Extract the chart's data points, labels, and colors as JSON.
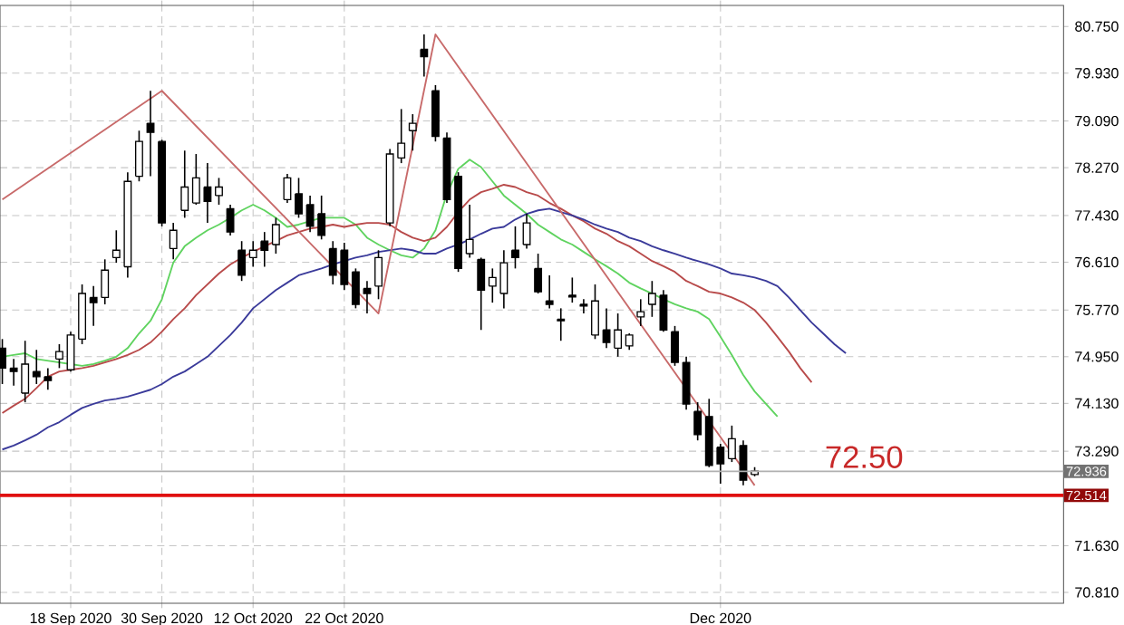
{
  "chart_data": {
    "type": "candlestick",
    "categories": [
      null,
      null,
      null,
      null,
      null,
      null,
      "18 Sep 2020",
      null,
      null,
      null,
      null,
      null,
      null,
      null,
      "30 Sep 2020",
      null,
      null,
      null,
      null,
      null,
      null,
      null,
      "12 Oct 2020",
      null,
      null,
      null,
      null,
      null,
      null,
      null,
      "22 Oct 2020",
      null,
      null,
      null,
      null,
      null,
      null,
      null,
      null,
      null,
      null,
      null,
      null,
      null,
      null,
      null,
      null,
      null,
      null,
      null,
      null,
      null,
      null,
      null,
      null,
      null,
      null,
      null,
      null,
      null,
      null,
      null,
      null,
      "Dec 2020",
      null,
      null,
      null,
      null,
      null,
      null,
      null,
      null,
      null,
      null,
      null,
      null,
      null,
      null,
      null,
      null,
      null,
      null,
      null,
      null,
      null,
      null,
      null,
      null,
      null,
      null,
      null,
      null,
      null,
      null
    ],
    "ohlc": [
      [
        75.1,
        75.26,
        74.47,
        74.75
      ],
      [
        74.75,
        74.91,
        74.44,
        74.69
      ],
      [
        74.31,
        75.23,
        74.15,
        74.82
      ],
      [
        74.69,
        75.07,
        74.47,
        74.6
      ],
      [
        74.6,
        74.75,
        74.37,
        74.53
      ],
      [
        74.91,
        75.17,
        74.75,
        75.04
      ],
      [
        74.72,
        75.39,
        74.69,
        75.33
      ],
      [
        75.26,
        76.22,
        75.17,
        76.06
      ],
      [
        75.99,
        76.19,
        75.49,
        75.9
      ],
      [
        75.99,
        76.66,
        75.87,
        76.47
      ],
      [
        76.69,
        77.17,
        76.6,
        76.82
      ],
      [
        76.53,
        78.19,
        76.34,
        78.03
      ],
      [
        78.12,
        78.92,
        78.03,
        78.73
      ],
      [
        79.05,
        79.62,
        78.12,
        78.89
      ],
      [
        78.73,
        78.76,
        77.24,
        77.3
      ],
      [
        76.85,
        77.3,
        76.66,
        77.17
      ],
      [
        77.52,
        78.57,
        77.39,
        77.93
      ],
      [
        77.65,
        78.51,
        77.62,
        78.09
      ],
      [
        77.93,
        78.35,
        77.3,
        77.68
      ],
      [
        77.78,
        78.09,
        77.62,
        77.93
      ],
      [
        77.55,
        77.62,
        77.08,
        77.14
      ],
      [
        76.82,
        76.98,
        76.28,
        76.38
      ],
      [
        76.69,
        76.98,
        76.53,
        76.82
      ],
      [
        76.98,
        77.14,
        76.53,
        76.82
      ],
      [
        76.92,
        77.39,
        76.76,
        77.27
      ],
      [
        77.71,
        78.16,
        77.65,
        78.09
      ],
      [
        77.81,
        78.09,
        77.39,
        77.46
      ],
      [
        77.62,
        77.78,
        77.14,
        77.24
      ],
      [
        77.46,
        77.78,
        77.01,
        77.08
      ],
      [
        76.85,
        76.98,
        76.22,
        76.38
      ],
      [
        76.82,
        76.95,
        76.12,
        76.22
      ],
      [
        76.44,
        76.5,
        75.8,
        75.87
      ],
      [
        76.15,
        76.28,
        75.71,
        76.06
      ],
      [
        76.19,
        76.82,
        75.96,
        76.69
      ],
      [
        77.3,
        78.6,
        77.24,
        78.51
      ],
      [
        78.44,
        79.3,
        78.35,
        78.7
      ],
      [
        78.92,
        79.21,
        78.57,
        79.05
      ],
      [
        80.35,
        80.61,
        79.87,
        80.22
      ],
      [
        79.62,
        79.72,
        78.73,
        78.82
      ],
      [
        78.79,
        78.89,
        77.65,
        77.71
      ],
      [
        78.12,
        78.19,
        76.44,
        76.5
      ],
      [
        76.76,
        77.62,
        76.69,
        77.01
      ],
      [
        76.66,
        76.69,
        75.42,
        76.12
      ],
      [
        76.19,
        76.5,
        75.9,
        76.34
      ],
      [
        76.06,
        76.82,
        75.8,
        76.6
      ],
      [
        76.82,
        77.24,
        76.5,
        76.69
      ],
      [
        76.92,
        77.46,
        76.85,
        77.3
      ],
      [
        76.5,
        76.76,
        76.06,
        76.09
      ],
      [
        75.93,
        76.38,
        75.8,
        75.87
      ],
      [
        75.61,
        75.8,
        75.23,
        75.58
      ],
      [
        76.03,
        76.34,
        75.9,
        76.0
      ],
      [
        75.87,
        75.96,
        75.71,
        75.84
      ],
      [
        75.33,
        76.22,
        75.26,
        75.93
      ],
      [
        75.42,
        75.8,
        75.1,
        75.2
      ],
      [
        75.1,
        75.71,
        74.95,
        75.42
      ],
      [
        75.14,
        75.36,
        75.07,
        75.33
      ],
      [
        75.65,
        75.96,
        75.49,
        75.74
      ],
      [
        75.87,
        76.28,
        75.65,
        76.06
      ],
      [
        76.03,
        76.12,
        75.39,
        75.42
      ],
      [
        75.39,
        75.49,
        74.79,
        74.85
      ],
      [
        74.85,
        74.95,
        74.02,
        74.12
      ],
      [
        73.99,
        74.15,
        73.48,
        73.58
      ],
      [
        73.9,
        74.21,
        73.01,
        73.04
      ],
      [
        73.36,
        73.42,
        72.72,
        73.07
      ],
      [
        73.16,
        73.74,
        73.1,
        73.51
      ],
      [
        73.39,
        73.48,
        72.69,
        72.78
      ],
      [
        72.88,
        73.01,
        72.85,
        72.94
      ],
      null,
      null,
      null,
      null,
      null,
      null,
      null,
      null,
      null,
      null,
      null,
      null,
      null,
      null,
      null,
      null,
      null,
      null,
      null,
      null,
      null,
      null,
      null,
      null,
      null,
      null,
      null
    ],
    "series": [
      {
        "type": "line",
        "color": "#5fd35f",
        "values": [
          74.95,
          74.98,
          75.01,
          74.91,
          74.88,
          74.85,
          74.82,
          74.79,
          74.82,
          74.88,
          74.95,
          75.1,
          75.36,
          75.58,
          75.96,
          76.6,
          76.89,
          77.04,
          77.17,
          77.27,
          77.39,
          77.52,
          77.62,
          77.52,
          77.39,
          77.23,
          77.27,
          77.33,
          77.39,
          77.39,
          77.39,
          77.27,
          77.04,
          76.92,
          76.82,
          76.73,
          76.69,
          76.85,
          77.17,
          77.81,
          78.25,
          78.41,
          78.28,
          78.03,
          77.78,
          77.62,
          77.46,
          77.27,
          77.14,
          77.01,
          76.92,
          76.79,
          76.66,
          76.54,
          76.41,
          76.25,
          76.15,
          76.06,
          75.96,
          75.87,
          75.8,
          75.74,
          75.61,
          75.3,
          74.98,
          74.63,
          74.34,
          74.12,
          73.9,
          null,
          null,
          null,
          null,
          null,
          null,
          null,
          null,
          null,
          null,
          null,
          null,
          null,
          null,
          null,
          null,
          null,
          null,
          null,
          null,
          null,
          null,
          null,
          null,
          null
        ]
      },
      {
        "type": "line",
        "color": "#b84a4a",
        "values": [
          73.96,
          74.09,
          74.21,
          74.4,
          74.6,
          74.69,
          74.72,
          74.75,
          74.79,
          74.85,
          74.91,
          74.98,
          75.07,
          75.2,
          75.39,
          75.61,
          75.8,
          76.03,
          76.22,
          76.41,
          76.57,
          76.69,
          76.79,
          76.89,
          76.98,
          77.08,
          77.14,
          77.2,
          77.23,
          77.27,
          77.23,
          77.27,
          77.3,
          77.3,
          77.27,
          77.14,
          77.04,
          76.98,
          77.04,
          77.23,
          77.49,
          77.71,
          77.84,
          77.9,
          77.97,
          77.93,
          77.84,
          77.78,
          77.65,
          77.55,
          77.43,
          77.33,
          77.2,
          77.11,
          76.98,
          76.89,
          76.76,
          76.63,
          76.54,
          76.44,
          76.28,
          76.19,
          76.09,
          76.06,
          75.99,
          75.9,
          75.77,
          75.55,
          75.3,
          75.04,
          74.75,
          74.5,
          null,
          null,
          null,
          null,
          null,
          null,
          null,
          null,
          null,
          null,
          null,
          null,
          null,
          null,
          null,
          null,
          null,
          null,
          null,
          null,
          null,
          null
        ]
      },
      {
        "type": "line",
        "color": "#3a3a9a",
        "values": [
          73.32,
          73.39,
          73.48,
          73.58,
          73.71,
          73.8,
          73.93,
          74.05,
          74.12,
          74.18,
          74.21,
          74.25,
          74.31,
          74.37,
          74.47,
          74.6,
          74.69,
          74.82,
          74.95,
          75.14,
          75.33,
          75.55,
          75.8,
          75.96,
          76.12,
          76.25,
          76.38,
          76.44,
          76.5,
          76.57,
          76.63,
          76.69,
          76.73,
          76.79,
          76.82,
          76.85,
          76.82,
          76.76,
          76.76,
          76.85,
          76.92,
          77.01,
          77.11,
          77.2,
          77.23,
          77.36,
          77.46,
          77.52,
          77.55,
          77.49,
          77.43,
          77.36,
          77.27,
          77.2,
          77.14,
          77.04,
          76.98,
          76.89,
          76.82,
          76.76,
          76.69,
          76.63,
          76.57,
          76.5,
          76.41,
          76.38,
          76.34,
          76.28,
          76.19,
          75.99,
          75.77,
          75.55,
          75.36,
          75.17,
          75.01,
          null,
          null,
          null,
          null,
          null,
          null,
          null,
          null,
          null,
          null,
          null,
          null,
          null,
          null,
          null,
          null,
          null,
          null,
          null
        ]
      },
      {
        "type": "line",
        "color": "#c86a6a",
        "values": [
          77.71,
          null,
          null,
          null,
          null,
          null,
          null,
          null,
          null,
          null,
          null,
          null,
          null,
          null,
          79.62,
          null,
          null,
          null,
          null,
          null,
          null,
          null,
          null,
          null,
          null,
          null,
          null,
          null,
          null,
          null,
          null,
          null,
          null,
          75.71,
          null,
          null,
          null,
          null,
          80.61,
          null,
          null,
          null,
          null,
          null,
          null,
          null,
          null,
          null,
          null,
          null,
          null,
          null,
          null,
          null,
          null,
          null,
          null,
          null,
          null,
          null,
          null,
          null,
          null,
          null,
          null,
          null,
          72.69,
          null,
          null,
          null,
          null,
          null,
          null,
          null,
          null,
          null,
          null,
          null,
          null,
          null,
          null,
          null,
          null,
          null,
          null,
          null,
          null,
          null,
          null,
          null,
          null,
          null,
          null,
          null
        ]
      }
    ],
    "ylim": [
      70.62,
      81.12
    ],
    "yticks": [
      {
        "value": 80.75,
        "label": "80.750"
      },
      {
        "value": 79.93,
        "label": "79.930"
      },
      {
        "value": 79.09,
        "label": "79.090"
      },
      {
        "value": 78.27,
        "label": "78.270"
      },
      {
        "value": 77.43,
        "label": "77.430"
      },
      {
        "value": 76.61,
        "label": "76.610"
      },
      {
        "value": 75.77,
        "label": "75.770"
      },
      {
        "value": 74.95,
        "label": "74.950"
      },
      {
        "value": 74.13,
        "label": "74.130"
      },
      {
        "value": 73.29,
        "label": "73.290"
      },
      {
        "value": 71.63,
        "label": "71.630"
      },
      {
        "value": 70.81,
        "label": "70.810"
      }
    ],
    "ref_lines": [
      {
        "axis": "y",
        "value": 72.936,
        "label": "72.936",
        "color": "#b0b0b0"
      },
      {
        "axis": "y",
        "value": 72.514,
        "label": "72.514",
        "color": "#e01010"
      }
    ],
    "annotations": [
      "72.50"
    ],
    "grid": true
  }
}
